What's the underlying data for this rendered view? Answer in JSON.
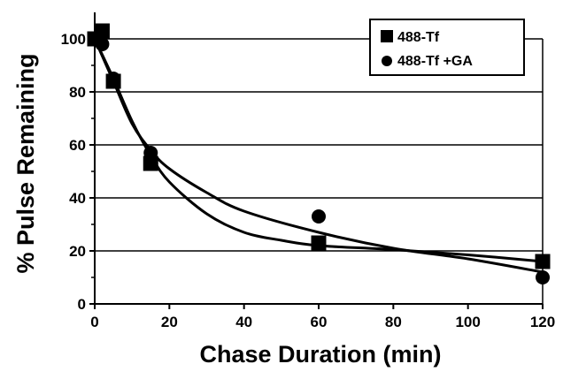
{
  "chart_data": {
    "type": "scatter",
    "xlabel": "Chase Duration (min)",
    "ylabel": "% Pulse Remaining",
    "xlim": [
      0,
      120
    ],
    "ylim": [
      0,
      110
    ],
    "x_ticks": [
      0,
      20,
      40,
      60,
      80,
      100,
      120
    ],
    "y_ticks": [
      0,
      20,
      40,
      60,
      80,
      100
    ],
    "grid": "horizontal",
    "legend_position": "top-right",
    "series": [
      {
        "name": "488-Tf",
        "marker": "square",
        "color": "#000000",
        "points": [
          {
            "x": 0,
            "y": 100
          },
          {
            "x": 2,
            "y": 103
          },
          {
            "x": 5,
            "y": 84
          },
          {
            "x": 15,
            "y": 53
          },
          {
            "x": 60,
            "y": 23
          },
          {
            "x": 120,
            "y": 16
          }
        ],
        "fit_curve": [
          {
            "x": 0,
            "y": 100
          },
          {
            "x": 5,
            "y": 85
          },
          {
            "x": 10,
            "y": 69
          },
          {
            "x": 15,
            "y": 56
          },
          {
            "x": 20,
            "y": 46
          },
          {
            "x": 30,
            "y": 34
          },
          {
            "x": 40,
            "y": 27
          },
          {
            "x": 50,
            "y": 24
          },
          {
            "x": 60,
            "y": 22
          },
          {
            "x": 80,
            "y": 20.5
          },
          {
            "x": 100,
            "y": 18.5
          },
          {
            "x": 120,
            "y": 16
          }
        ]
      },
      {
        "name": "488-Tf +GA",
        "marker": "circle",
        "color": "#000000",
        "points": [
          {
            "x": 0,
            "y": 100
          },
          {
            "x": 2,
            "y": 98
          },
          {
            "x": 5,
            "y": 85
          },
          {
            "x": 15,
            "y": 57
          },
          {
            "x": 60,
            "y": 33
          },
          {
            "x": 120,
            "y": 10
          }
        ],
        "fit_curve": [
          {
            "x": 0,
            "y": 100
          },
          {
            "x": 5,
            "y": 84
          },
          {
            "x": 10,
            "y": 68
          },
          {
            "x": 15,
            "y": 58
          },
          {
            "x": 20,
            "y": 51
          },
          {
            "x": 30,
            "y": 42
          },
          {
            "x": 40,
            "y": 35
          },
          {
            "x": 60,
            "y": 27
          },
          {
            "x": 80,
            "y": 21
          },
          {
            "x": 100,
            "y": 17
          },
          {
            "x": 120,
            "y": 12
          }
        ]
      }
    ]
  }
}
